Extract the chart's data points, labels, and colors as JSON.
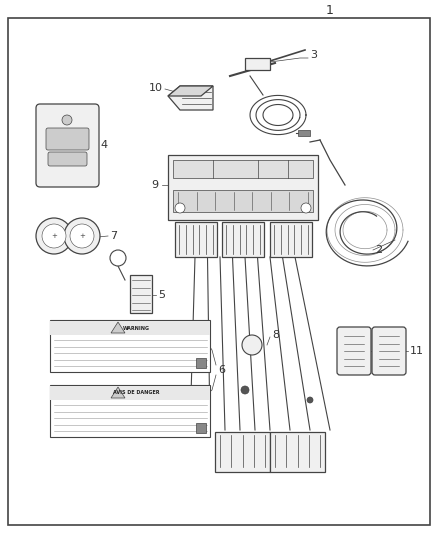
{
  "title": "1",
  "background_color": "#ffffff",
  "border_color": "#444444",
  "label_color": "#333333",
  "figsize": [
    4.38,
    5.33
  ],
  "dpi": 100,
  "line_color": "#444444",
  "fill_color": "#f0f0f0"
}
